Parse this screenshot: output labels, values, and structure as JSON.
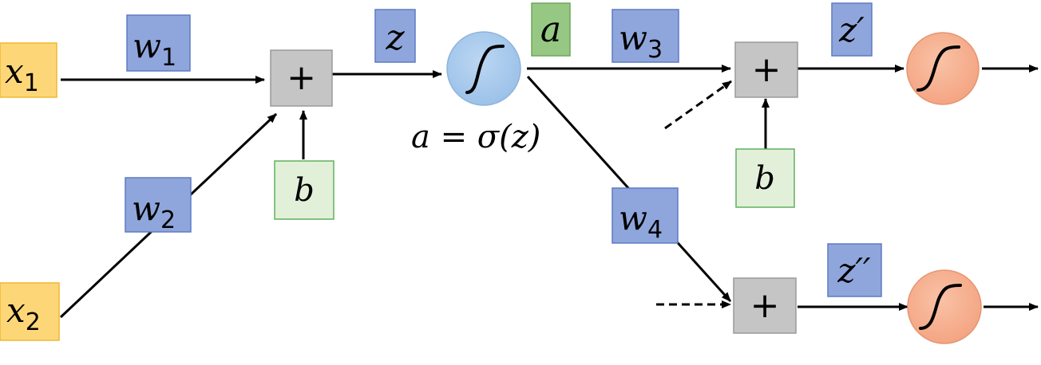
{
  "inputs": {
    "x1": {
      "base": "x",
      "sub": "1"
    },
    "x2": {
      "base": "x",
      "sub": "2"
    }
  },
  "weights": {
    "w1": {
      "base": "w",
      "sub": "1"
    },
    "w2": {
      "base": "w",
      "sub": "2"
    },
    "w3": {
      "base": "w",
      "sub": "3"
    },
    "w4": {
      "base": "w",
      "sub": "4"
    }
  },
  "bias_label": "b",
  "sum_symbol": "+",
  "z_label": "z",
  "z_prime_label": "z′",
  "z_double_prime_label": "z′′",
  "activation_output_label": "a",
  "activation_equation": "a = σ(z)",
  "colors": {
    "input_fill": "#fdd777",
    "input_stroke": "#f0b731",
    "weight_fill": "#8fa6dc",
    "weight_stroke": "#5f7ac4",
    "bias_fill": "#e2f0d9",
    "bias_stroke": "#5fb05f",
    "sum_fill": "#c5c5c5",
    "sum_stroke": "#9a9a9a",
    "a_label_fill": "#96c883",
    "a_label_stroke": "#6fa55c",
    "sigmoid_hidden": "#9cc2e9",
    "sigmoid_output": "#f4a583",
    "edge": "#000000"
  },
  "icons": [
    "sigmoid-curve-icon",
    "arrow-icon",
    "dashed-arrow-icon"
  ]
}
